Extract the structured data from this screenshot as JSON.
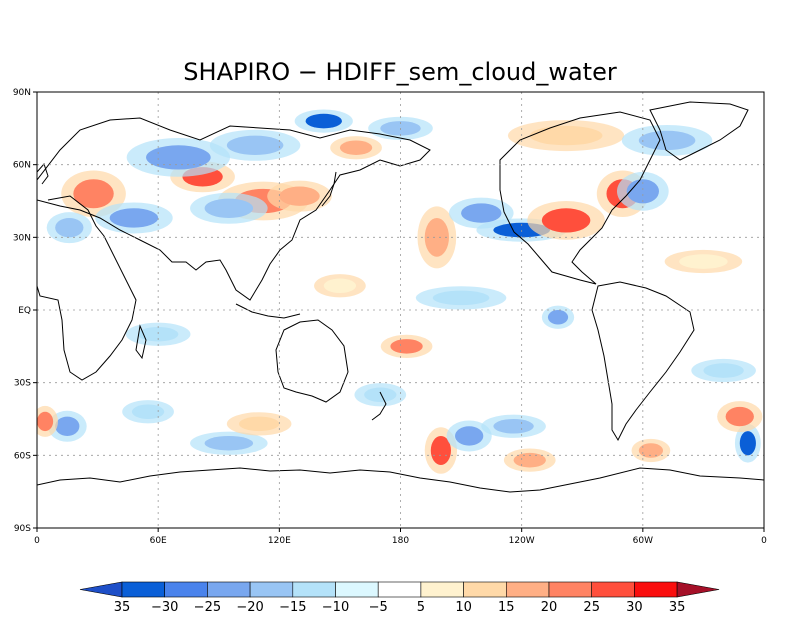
{
  "title": "SHAPIRO  −  HDIFF_sem_cloud_water",
  "map": {
    "projection": "cylindrical equidistant",
    "lon_range": [
      0,
      360
    ],
    "lat_range": [
      -90,
      90
    ],
    "grid": true,
    "lat_ticks": [
      {
        "lat": 90,
        "label": "90N"
      },
      {
        "lat": 60,
        "label": "60N"
      },
      {
        "lat": 30,
        "label": "30N"
      },
      {
        "lat": 0,
        "label": "EQ"
      },
      {
        "lat": -30,
        "label": "30S"
      },
      {
        "lat": -60,
        "label": "60S"
      },
      {
        "lat": -90,
        "label": "90S"
      }
    ],
    "lon_ticks": [
      {
        "lon": 0,
        "label": "0"
      },
      {
        "lon": 60,
        "label": "60E"
      },
      {
        "lon": 120,
        "label": "120E"
      },
      {
        "lon": 180,
        "label": "180"
      },
      {
        "lon": 240,
        "label": "120W"
      },
      {
        "lon": 300,
        "label": "60W"
      },
      {
        "lon": 360,
        "label": "0"
      }
    ],
    "anomalies": [
      {
        "lon": 28,
        "lat": 48,
        "rx": 10,
        "ry": 6,
        "level": 25
      },
      {
        "lon": 16,
        "lat": 34,
        "rx": 7,
        "ry": 4,
        "level": -15
      },
      {
        "lon": 48,
        "lat": 38,
        "rx": 12,
        "ry": 4,
        "level": -20
      },
      {
        "lon": 82,
        "lat": 55,
        "rx": 10,
        "ry": 4,
        "level": 30
      },
      {
        "lon": 70,
        "lat": 63,
        "rx": 16,
        "ry": 5,
        "level": -20
      },
      {
        "lon": 112,
        "lat": 45,
        "rx": 14,
        "ry": 5,
        "level": 25
      },
      {
        "lon": 130,
        "lat": 47,
        "rx": 10,
        "ry": 4,
        "level": 20
      },
      {
        "lon": 95,
        "lat": 42,
        "rx": 12,
        "ry": 4,
        "level": -15
      },
      {
        "lon": 108,
        "lat": 68,
        "rx": 14,
        "ry": 4,
        "level": -15
      },
      {
        "lon": 142,
        "lat": 78,
        "rx": 9,
        "ry": 3,
        "level": -30
      },
      {
        "lon": 180,
        "lat": 75,
        "rx": 10,
        "ry": 3,
        "level": -15
      },
      {
        "lon": 158,
        "lat": 67,
        "rx": 8,
        "ry": 3,
        "level": 20
      },
      {
        "lon": 240,
        "lat": 33,
        "rx": 14,
        "ry": 3,
        "level": -30
      },
      {
        "lon": 262,
        "lat": 37,
        "rx": 12,
        "ry": 5,
        "level": 30
      },
      {
        "lon": 290,
        "lat": 48,
        "rx": 8,
        "ry": 6,
        "level": 30
      },
      {
        "lon": 300,
        "lat": 49,
        "rx": 8,
        "ry": 5,
        "level": -20
      },
      {
        "lon": 262,
        "lat": 72,
        "rx": 18,
        "ry": 4,
        "level": 15
      },
      {
        "lon": 312,
        "lat": 70,
        "rx": 14,
        "ry": 4,
        "level": -15
      },
      {
        "lon": 198,
        "lat": 30,
        "rx": 6,
        "ry": 8,
        "level": 20
      },
      {
        "lon": 220,
        "lat": 40,
        "rx": 10,
        "ry": 4,
        "level": -20
      },
      {
        "lon": 183,
        "lat": -15,
        "rx": 8,
        "ry": 3,
        "level": 25
      },
      {
        "lon": 200,
        "lat": -58,
        "rx": 5,
        "ry": 6,
        "level": 30
      },
      {
        "lon": 214,
        "lat": -52,
        "rx": 7,
        "ry": 4,
        "level": -20
      },
      {
        "lon": 244,
        "lat": -62,
        "rx": 8,
        "ry": 3,
        "level": 20
      },
      {
        "lon": 236,
        "lat": -48,
        "rx": 10,
        "ry": 3,
        "level": -15
      },
      {
        "lon": 15,
        "lat": -48,
        "rx": 6,
        "ry": 4,
        "level": -20
      },
      {
        "lon": 4,
        "lat": -46,
        "rx": 4,
        "ry": 4,
        "level": 25
      },
      {
        "lon": 352,
        "lat": -55,
        "rx": 4,
        "ry": 5,
        "level": -30
      },
      {
        "lon": 348,
        "lat": -44,
        "rx": 7,
        "ry": 4,
        "level": 25
      },
      {
        "lon": 304,
        "lat": -58,
        "rx": 6,
        "ry": 3,
        "level": 20
      },
      {
        "lon": 95,
        "lat": -55,
        "rx": 12,
        "ry": 3,
        "level": -15
      },
      {
        "lon": 110,
        "lat": -47,
        "rx": 10,
        "ry": 3,
        "level": 15
      },
      {
        "lon": 55,
        "lat": -42,
        "rx": 8,
        "ry": 3,
        "level": -10
      },
      {
        "lon": 258,
        "lat": -3,
        "rx": 5,
        "ry": 3,
        "level": -20
      },
      {
        "lon": 150,
        "lat": 10,
        "rx": 8,
        "ry": 3,
        "level": 10
      },
      {
        "lon": 210,
        "lat": 5,
        "rx": 14,
        "ry": 3,
        "level": -10
      },
      {
        "lon": 330,
        "lat": 20,
        "rx": 12,
        "ry": 3,
        "level": 10
      },
      {
        "lon": 340,
        "lat": -25,
        "rx": 10,
        "ry": 3,
        "level": -10
      },
      {
        "lon": 170,
        "lat": -35,
        "rx": 8,
        "ry": 3,
        "level": -10
      },
      {
        "lon": 60,
        "lat": -10,
        "rx": 10,
        "ry": 3,
        "level": -10
      }
    ]
  },
  "colorbar": {
    "labels": [
      "35",
      "−30",
      "−25",
      "−20",
      "−15",
      "−10",
      "−5",
      "5",
      "10",
      "15",
      "20",
      "25",
      "30",
      "35"
    ],
    "colors": [
      "#1e4fc8",
      "#0a5fd7",
      "#4a83ec",
      "#79a7ef",
      "#99c5f4",
      "#b4e2f9",
      "#dcf8ff",
      "#ffffff",
      "#fff2cf",
      "#ffd9a8",
      "#ffaf85",
      "#ff8363",
      "#ff4f3c",
      "#fa0e0e",
      "#a51028"
    ]
  }
}
